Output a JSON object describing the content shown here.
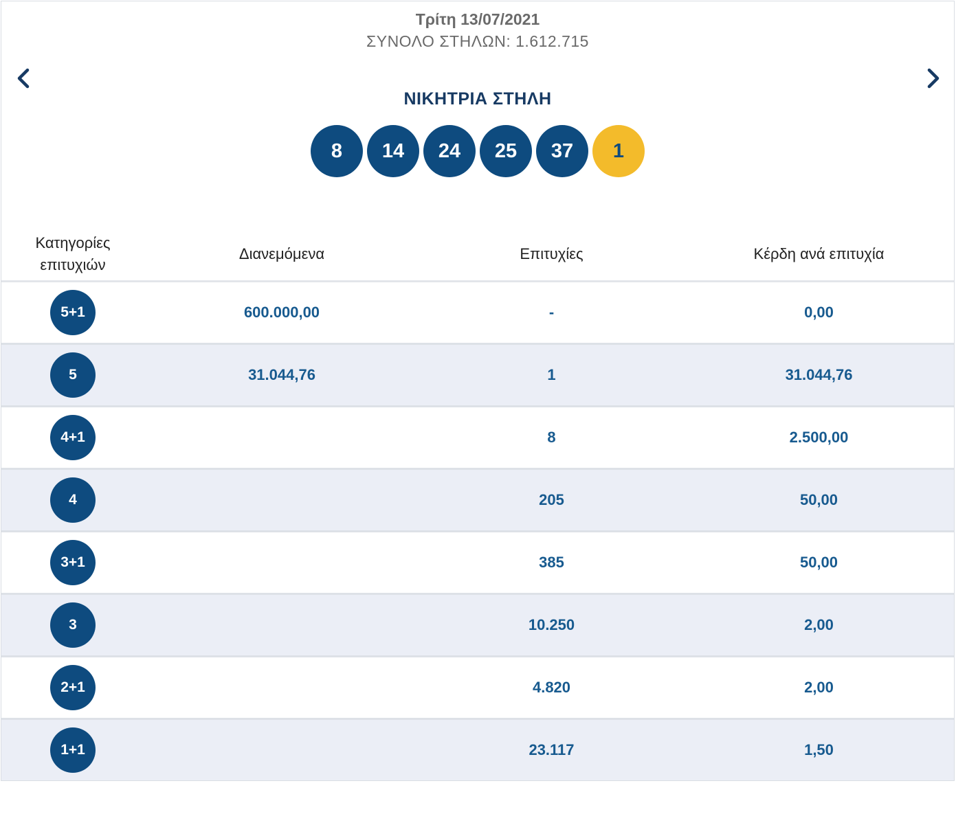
{
  "header": {
    "date": "Τρίτη 13/07/2021",
    "total_columns": "ΣΥΝΟΛΟ ΣΤΗΛΩΝ: 1.612.715",
    "prev_icon": "chevron-left-icon",
    "next_icon": "chevron-right-icon"
  },
  "winning": {
    "title": "ΝΙΚΗΤΡΙΑ ΣΤΗΛΗ",
    "numbers": [
      "8",
      "14",
      "24",
      "25",
      "37"
    ],
    "bonus": "1"
  },
  "colors": {
    "ball": "#0e4b7f",
    "bonus_ball": "#f3bb2b",
    "value_text": "#175a8f",
    "alt_row": "#ebeef6"
  },
  "table": {
    "headers": {
      "category_line1": "Κατηγορίες",
      "category_line2": "επιτυχιών",
      "distributed": "Διανεμόμενα",
      "winners": "Επιτυχίες",
      "prize_per_winner": "Κέρδη ανά επιτυχία"
    },
    "rows": [
      {
        "category": "5+1",
        "distributed": "600.000,00",
        "winners": "-",
        "prize": "0,00"
      },
      {
        "category": "5",
        "distributed": "31.044,76",
        "winners": "1",
        "prize": "31.044,76"
      },
      {
        "category": "4+1",
        "distributed": "",
        "winners": "8",
        "prize": "2.500,00"
      },
      {
        "category": "4",
        "distributed": "",
        "winners": "205",
        "prize": "50,00"
      },
      {
        "category": "3+1",
        "distributed": "",
        "winners": "385",
        "prize": "50,00"
      },
      {
        "category": "3",
        "distributed": "",
        "winners": "10.250",
        "prize": "2,00"
      },
      {
        "category": "2+1",
        "distributed": "",
        "winners": "4.820",
        "prize": "2,00"
      },
      {
        "category": "1+1",
        "distributed": "",
        "winners": "23.117",
        "prize": "1,50"
      }
    ]
  }
}
